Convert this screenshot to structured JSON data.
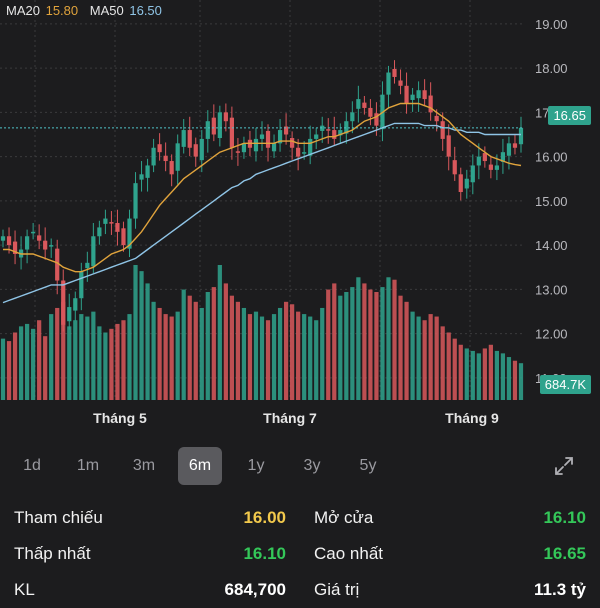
{
  "legend": {
    "ma20_label": "MA20",
    "ma20_value": "15.80",
    "ma50_label": "MA50",
    "ma50_value": "16.50",
    "ma20_color": "#e0a33c",
    "ma50_color": "#8fc4e6"
  },
  "tags": {
    "price": "16.65",
    "volume": "684.7K"
  },
  "colors": {
    "up": "#2fa38d",
    "down": "#d9585c",
    "grid": "#3a3a3c",
    "ref_line": "#4fc3c8"
  },
  "chart_data": {
    "type": "candlestick",
    "ylim": [
      10.5,
      19.2
    ],
    "y_ticks": [
      "11.00",
      "12.00",
      "13.00",
      "14.00",
      "15.00",
      "16.00",
      "17.00",
      "18.00",
      "19.00"
    ],
    "x_tick_labels": [
      "Tháng 5",
      "Tháng 7",
      "Tháng 9"
    ],
    "last_price": 16.65,
    "last_volume": "684.7K",
    "close": [
      14.2,
      14.0,
      13.8,
      13.9,
      14.2,
      14.3,
      14.1,
      13.9,
      14.0,
      13.2,
      12.2,
      12.6,
      12.8,
      13.4,
      13.6,
      14.2,
      14.4,
      14.6,
      14.5,
      14.3,
      14.0,
      14.6,
      15.4,
      15.6,
      15.8,
      16.2,
      16.1,
      15.9,
      15.6,
      16.3,
      16.6,
      16.2,
      16.0,
      16.4,
      16.8,
      16.5,
      17.0,
      16.8,
      16.2,
      16.1,
      16.3,
      16.2,
      16.4,
      16.5,
      16.2,
      16.3,
      16.6,
      16.5,
      16.2,
      16.0,
      16.1,
      16.4,
      16.5,
      16.7,
      16.6,
      16.4,
      16.6,
      16.8,
      17.0,
      17.3,
      17.1,
      16.9,
      16.7,
      17.4,
      17.9,
      17.8,
      17.6,
      17.2,
      17.4,
      17.5,
      17.3,
      17.0,
      16.8,
      16.4,
      16.0,
      15.6,
      15.2,
      15.5,
      15.8,
      16.0,
      15.9,
      15.7,
      15.8,
      16.1,
      16.3,
      16.2,
      16.65
    ],
    "volume": [
      50,
      48,
      55,
      60,
      62,
      58,
      65,
      52,
      70,
      75,
      80,
      60,
      65,
      70,
      68,
      72,
      60,
      55,
      58,
      62,
      65,
      70,
      110,
      105,
      95,
      80,
      75,
      70,
      68,
      72,
      90,
      85,
      80,
      75,
      88,
      92,
      110,
      95,
      85,
      80,
      75,
      70,
      72,
      68,
      65,
      70,
      75,
      80,
      78,
      72,
      70,
      68,
      65,
      75,
      90,
      95,
      85,
      88,
      92,
      100,
      95,
      90,
      88,
      92,
      100,
      98,
      85,
      80,
      72,
      68,
      65,
      70,
      68,
      60,
      55,
      50,
      45,
      42,
      40,
      38,
      42,
      45,
      40,
      38,
      35,
      32,
      30
    ],
    "ma20": [
      13.9,
      13.9,
      13.85,
      13.8,
      13.8,
      13.8,
      13.75,
      13.7,
      13.65,
      13.6,
      13.5,
      13.45,
      13.4,
      13.4,
      13.45,
      13.5,
      13.6,
      13.7,
      13.8,
      13.85,
      13.9,
      14.0,
      14.15,
      14.3,
      14.5,
      14.7,
      14.9,
      15.05,
      15.2,
      15.35,
      15.5,
      15.6,
      15.7,
      15.8,
      15.9,
      16.0,
      16.1,
      16.15,
      16.2,
      16.25,
      16.3,
      16.3,
      16.3,
      16.3,
      16.3,
      16.3,
      16.35,
      16.35,
      16.35,
      16.3,
      16.3,
      16.3,
      16.35,
      16.4,
      16.45,
      16.45,
      16.5,
      16.55,
      16.6,
      16.7,
      16.8,
      16.85,
      16.9,
      17.0,
      17.1,
      17.15,
      17.2,
      17.2,
      17.2,
      17.2,
      17.15,
      17.1,
      17.0,
      16.9,
      16.8,
      16.65,
      16.5,
      16.4,
      16.3,
      16.2,
      16.1,
      16.0,
      15.95,
      15.9,
      15.85,
      15.82,
      15.8
    ],
    "ma50": [
      12.7,
      12.75,
      12.8,
      12.85,
      12.9,
      12.95,
      13.0,
      13.05,
      13.1,
      13.1,
      13.1,
      13.15,
      13.2,
      13.25,
      13.3,
      13.35,
      13.4,
      13.45,
      13.5,
      13.55,
      13.6,
      13.65,
      13.7,
      13.8,
      13.9,
      14.0,
      14.1,
      14.2,
      14.3,
      14.4,
      14.5,
      14.6,
      14.7,
      14.8,
      14.9,
      15.0,
      15.1,
      15.2,
      15.3,
      15.35,
      15.45,
      15.5,
      15.6,
      15.65,
      15.7,
      15.75,
      15.8,
      15.85,
      15.9,
      15.95,
      16.0,
      16.05,
      16.1,
      16.15,
      16.2,
      16.25,
      16.3,
      16.35,
      16.4,
      16.45,
      16.5,
      16.55,
      16.6,
      16.65,
      16.7,
      16.75,
      16.75,
      16.75,
      16.75,
      16.75,
      16.7,
      16.7,
      16.7,
      16.65,
      16.65,
      16.6,
      16.6,
      16.55,
      16.55,
      16.55,
      16.5,
      16.5,
      16.5,
      16.5,
      16.5,
      16.5,
      16.5
    ]
  },
  "range_buttons": [
    {
      "label": "1d",
      "active": false
    },
    {
      "label": "1m",
      "active": false
    },
    {
      "label": "3m",
      "active": false
    },
    {
      "label": "6m",
      "active": true
    },
    {
      "label": "1y",
      "active": false
    },
    {
      "label": "3y",
      "active": false
    },
    {
      "label": "5y",
      "active": false
    }
  ],
  "expand_icon": "expand-icon",
  "stats": {
    "tham_chieu_label": "Tham chiếu",
    "tham_chieu_value": "16.00",
    "mo_cua_label": "Mở cửa",
    "mo_cua_value": "16.10",
    "thap_nhat_label": "Thấp nhất",
    "thap_nhat_value": "16.10",
    "cao_nhat_label": "Cao nhất",
    "cao_nhat_value": "16.65",
    "kl_label": "KL",
    "kl_value": "684,700",
    "gia_tri_label": "Giá trị",
    "gia_tri_value": "11.3 tỷ"
  }
}
